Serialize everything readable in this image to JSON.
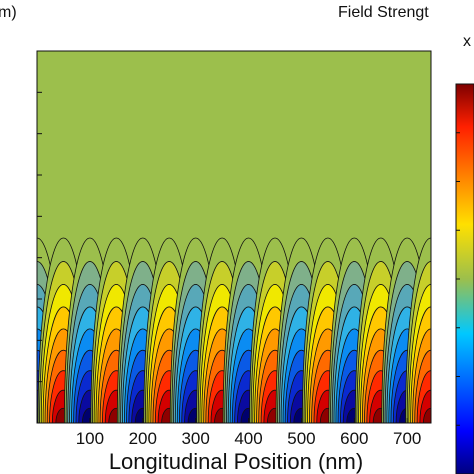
{
  "header": {
    "ylabel_fragment": "m)",
    "colorbar_title": "Field Strengt",
    "colorbar_multiplier": "x"
  },
  "chart_data": {
    "type": "heatmap",
    "title": "",
    "xlabel": "Longitudinal Position (nm)",
    "ylabel": "",
    "x_ticks": [
      100,
      200,
      300,
      400,
      500,
      600,
      700
    ],
    "xlim": [
      0,
      745
    ],
    "colorbar_title": "Field Strengt",
    "colormap": "jet",
    "background_color": "#9cbf4c",
    "contour_line_color": "#111111",
    "field_pattern": {
      "description_type": "standing-wave lobes confined near bottom edge",
      "lobe_centers_x": [
        0,
        50,
        100,
        150,
        200,
        250,
        300,
        350,
        400,
        450,
        500,
        550,
        600,
        650,
        700,
        745
      ],
      "lobe_signs": [
        -1,
        1,
        -1,
        1,
        -1,
        1,
        -1,
        1,
        -1,
        1,
        -1,
        1,
        -1,
        1,
        -1,
        1
      ],
      "contour_levels": 9
    }
  }
}
